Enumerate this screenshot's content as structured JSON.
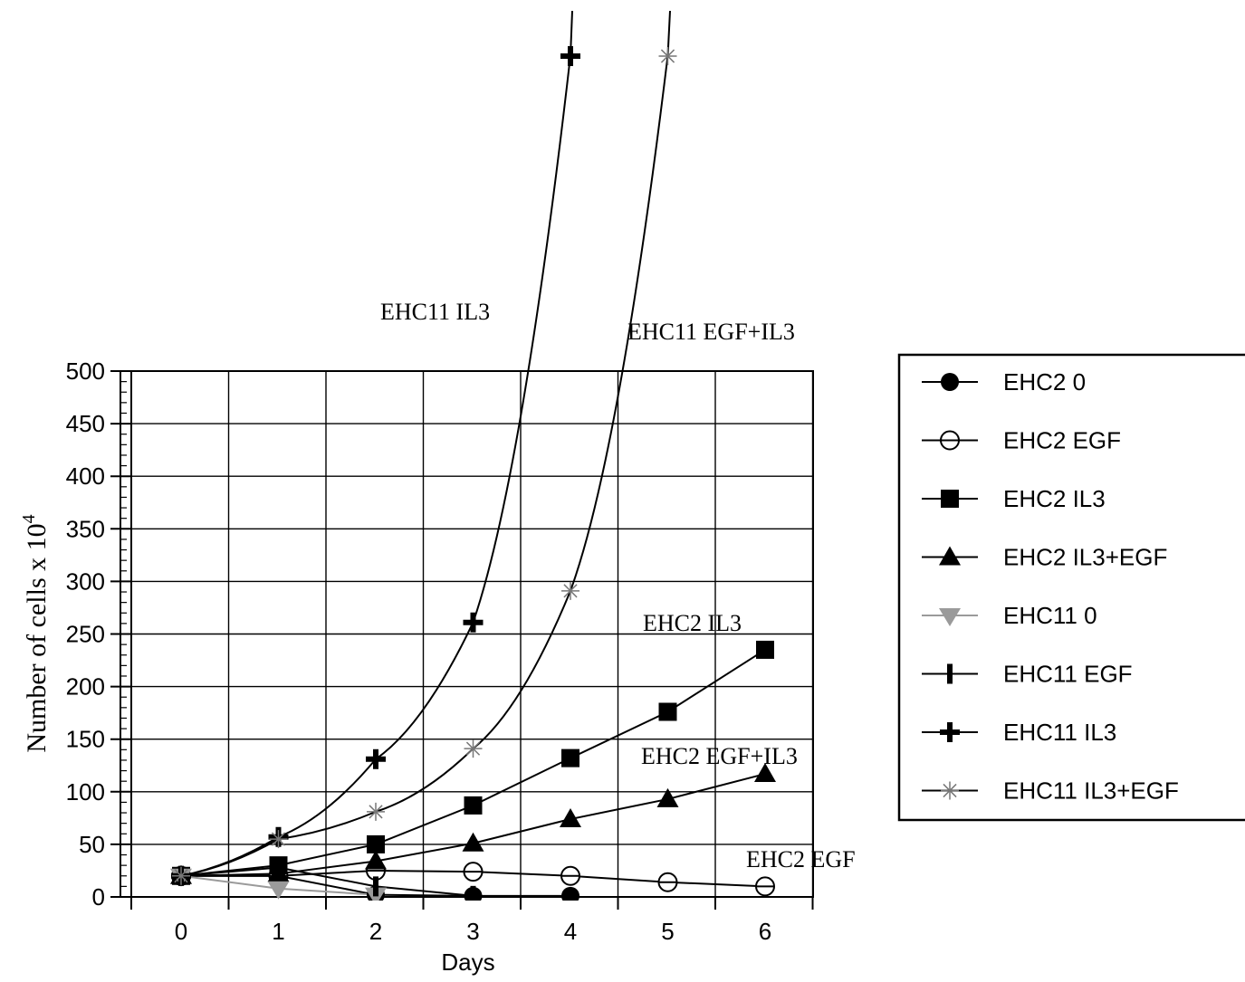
{
  "chart_data": {
    "type": "line",
    "xlabel": "Days",
    "ylabel": "Number of cells x 10",
    "ylabel_superscript": "4",
    "x": [
      0,
      1,
      2,
      3,
      4,
      5,
      6
    ],
    "ylim": [
      0,
      500
    ],
    "yticks": [
      0,
      50,
      100,
      150,
      200,
      250,
      300,
      350,
      400,
      450,
      500
    ],
    "grid": true,
    "legend_position": "right",
    "series": [
      {
        "name": "EHC2 0",
        "marker": "circle-filled",
        "color": "#000000",
        "points": [
          [
            0,
            20
          ],
          [
            1,
            20
          ],
          [
            2,
            2
          ],
          [
            3,
            1
          ],
          [
            4,
            1
          ]
        ]
      },
      {
        "name": "EHC2 EGF",
        "marker": "circle-open",
        "color": "#000000",
        "points": [
          [
            0,
            20
          ],
          [
            1,
            20
          ],
          [
            2,
            25
          ],
          [
            3,
            24
          ],
          [
            4,
            20
          ],
          [
            5,
            14
          ],
          [
            6,
            10
          ]
        ]
      },
      {
        "name": "EHC2 IL3",
        "marker": "square-filled",
        "color": "#000000",
        "points": [
          [
            0,
            20
          ],
          [
            1,
            30
          ],
          [
            2,
            50
          ],
          [
            3,
            87
          ],
          [
            4,
            132
          ],
          [
            5,
            176
          ],
          [
            6,
            235
          ]
        ]
      },
      {
        "name": "EHC2 IL3+EGF",
        "marker": "triangle-up-filled",
        "color": "#000000",
        "points": [
          [
            0,
            20
          ],
          [
            1,
            22
          ],
          [
            2,
            34
          ],
          [
            3,
            51
          ],
          [
            4,
            74
          ],
          [
            5,
            93
          ],
          [
            6,
            117
          ]
        ]
      },
      {
        "name": "EHC11 0",
        "marker": "triangle-down-filled",
        "color": "#9a9a9a",
        "points": [
          [
            0,
            20
          ],
          [
            1,
            8
          ],
          [
            2,
            2
          ]
        ]
      },
      {
        "name": "EHC11 EGF",
        "marker": "bar",
        "color": "#000000",
        "points": [
          [
            0,
            20
          ],
          [
            1,
            28
          ],
          [
            2,
            10
          ],
          [
            3,
            1
          ]
        ]
      },
      {
        "name": "EHC11 IL3",
        "marker": "cross",
        "color": "#000000",
        "points": [
          [
            0,
            20
          ],
          [
            1,
            57
          ],
          [
            2,
            131
          ],
          [
            3,
            261
          ],
          [
            4,
            800
          ]
        ]
      },
      {
        "name": "EHC11 IL3+EGF",
        "marker": "asterisk",
        "color": "#777777",
        "points": [
          [
            0,
            20
          ],
          [
            1,
            55
          ],
          [
            2,
            81
          ],
          [
            3,
            141
          ],
          [
            4,
            291
          ],
          [
            5,
            800
          ]
        ]
      }
    ],
    "annotations": [
      {
        "text": "EHC11 IL3"
      },
      {
        "text": "EHC11 EGF+IL3"
      },
      {
        "text": "EHC2 IL3"
      },
      {
        "text": "EHC2 EGF+IL3"
      },
      {
        "text": "EHC2 EGF"
      }
    ]
  }
}
